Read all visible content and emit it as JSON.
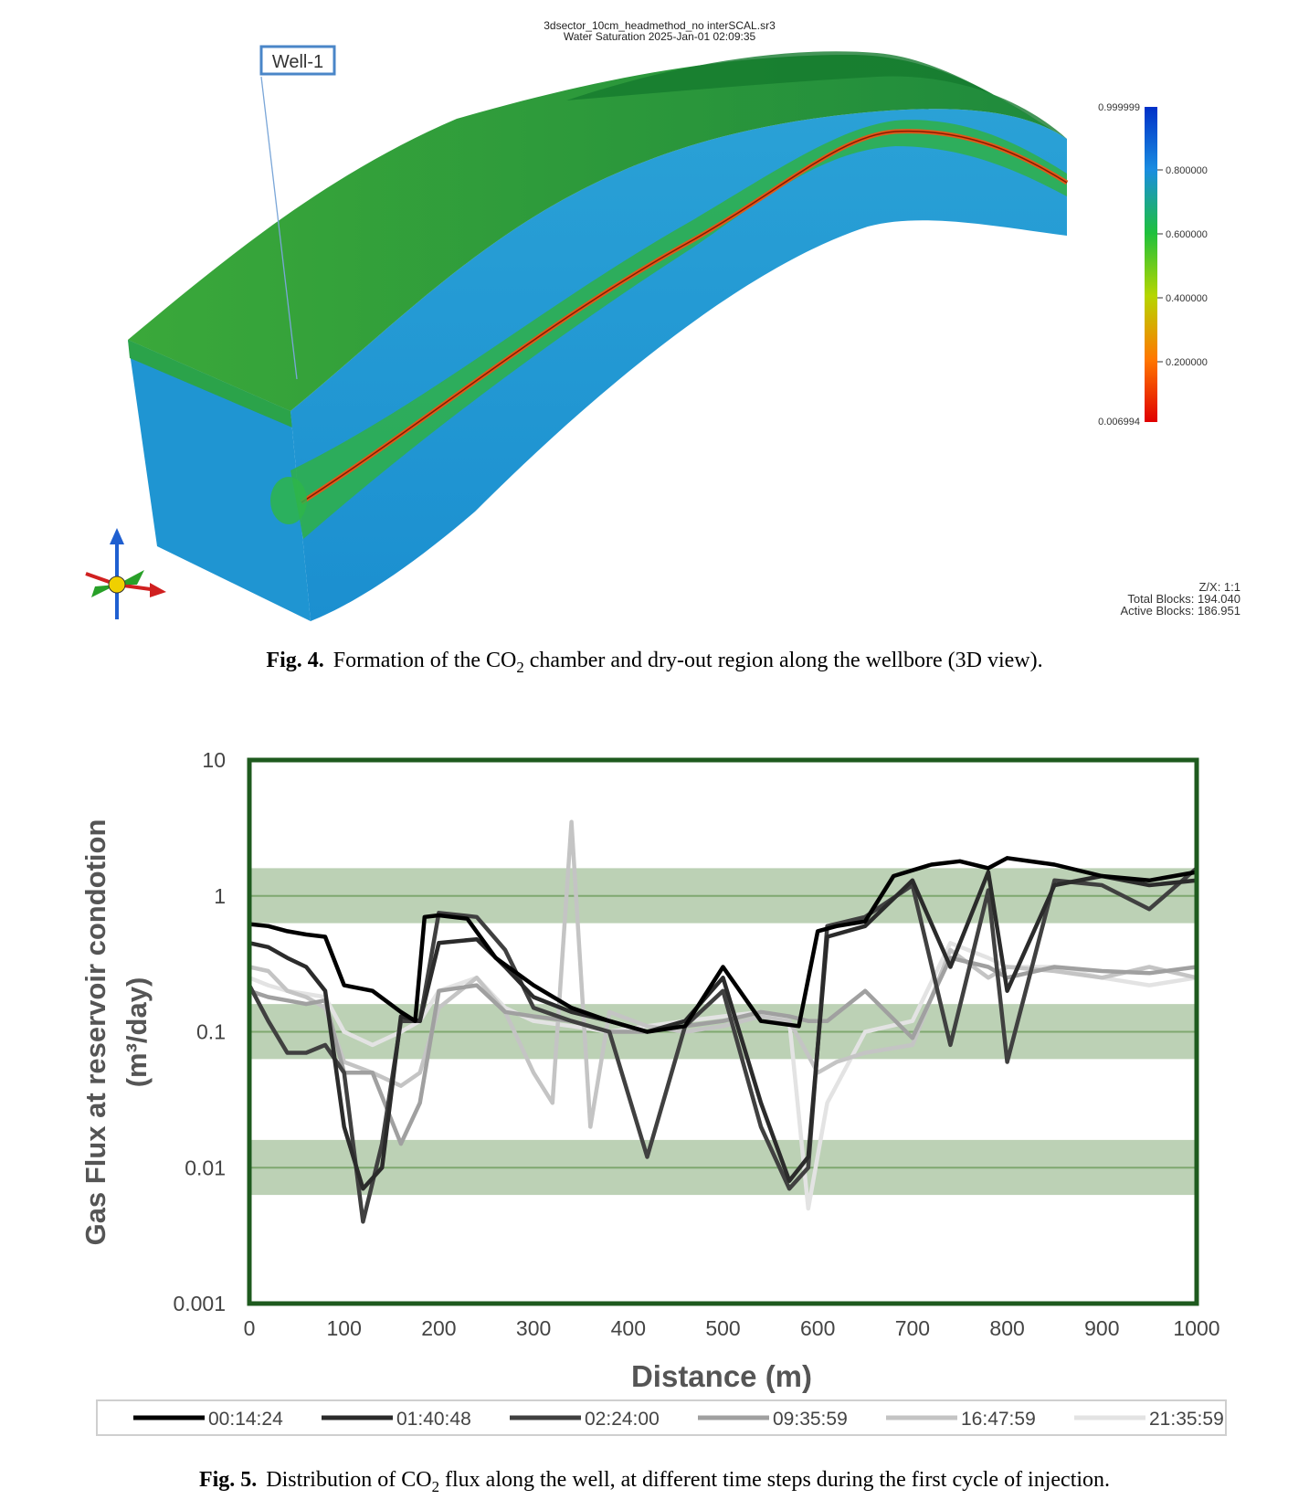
{
  "fig4": {
    "title_line1": "3dsector_10cm_headmethod_no interSCAL.sr3",
    "title_line2": "Water Saturation  2025-Jan-01 02:09:35",
    "well_label": "Well-1",
    "colorbar": {
      "top_value": "0.999999",
      "bottom_value": "0.006994",
      "ticks": [
        "0.800000",
        "0.600000",
        "0.400000",
        "0.200000"
      ],
      "colors": [
        "#0033cc",
        "#1f8fdc",
        "#1fc03a",
        "#a8d400",
        "#f0c800",
        "#ff6a00",
        "#e00000"
      ]
    },
    "info": {
      "zx": "Z/X: 1:1",
      "total_blocks": "Total Blocks: 194.040",
      "active_blocks": "Active Blocks: 186.951"
    },
    "caption_label": "Fig. 4.",
    "caption_pre": "Formation of the CO",
    "caption_sub": "2",
    "caption_post": " chamber and dry-out region along the wellbore (3D view)."
  },
  "fig5": {
    "caption_label": "Fig. 5.",
    "caption_pre": "Distribution of CO",
    "caption_sub": "2",
    "caption_post": " flux along the well, at different time steps during the first cycle of injection."
  },
  "chart_data": {
    "type": "line",
    "title": "",
    "xlabel": "Distance (m)",
    "ylabel_line1": "Gas Flux at reservoir condotion",
    "ylabel_line2": "(m³/day)",
    "xlim": [
      0,
      1000
    ],
    "ylim_log": [
      0.001,
      10
    ],
    "x_ticks": [
      "0",
      "100",
      "200",
      "300",
      "400",
      "500",
      "600",
      "700",
      "800",
      "900",
      "1000"
    ],
    "y_ticks": [
      "10",
      "1",
      "0.1",
      "0.01",
      "0.001"
    ],
    "bands": [
      {
        "center": 1,
        "low": 0.63,
        "high": 1.6
      },
      {
        "center": 0.1,
        "low": 0.063,
        "high": 0.16
      },
      {
        "center": 0.01,
        "low": 0.0063,
        "high": 0.016
      }
    ],
    "series": [
      {
        "name": "00:14:24",
        "color": "#000000",
        "x": [
          0,
          20,
          40,
          60,
          80,
          100,
          130,
          160,
          175,
          185,
          200,
          230,
          260,
          300,
          340,
          380,
          420,
          460,
          500,
          540,
          580,
          600,
          620,
          650,
          680,
          720,
          750,
          780,
          800,
          850,
          900,
          950,
          1000
        ],
        "y": [
          0.62,
          0.6,
          0.55,
          0.52,
          0.5,
          0.22,
          0.2,
          0.14,
          0.12,
          0.7,
          0.72,
          0.68,
          0.35,
          0.22,
          0.15,
          0.12,
          0.1,
          0.11,
          0.3,
          0.12,
          0.11,
          0.55,
          0.6,
          0.65,
          1.4,
          1.7,
          1.8,
          1.6,
          1.9,
          1.7,
          1.4,
          1.3,
          1.5
        ]
      },
      {
        "name": "01:40:48",
        "color": "#2b2b2b",
        "x": [
          0,
          20,
          40,
          60,
          80,
          100,
          120,
          140,
          160,
          180,
          200,
          240,
          270,
          300,
          340,
          380,
          420,
          460,
          500,
          540,
          570,
          590,
          610,
          650,
          700,
          740,
          780,
          800,
          850,
          900,
          950,
          1000
        ],
        "y": [
          0.45,
          0.42,
          0.35,
          0.3,
          0.2,
          0.02,
          0.007,
          0.01,
          0.13,
          0.12,
          0.45,
          0.48,
          0.3,
          0.18,
          0.14,
          0.12,
          0.1,
          0.12,
          0.25,
          0.03,
          0.008,
          0.012,
          0.5,
          0.6,
          1.3,
          0.3,
          1.5,
          0.2,
          1.2,
          1.4,
          1.2,
          1.3
        ]
      },
      {
        "name": "02:24:00",
        "color": "#404040",
        "x": [
          0,
          20,
          40,
          60,
          80,
          100,
          120,
          140,
          160,
          180,
          200,
          240,
          270,
          300,
          340,
          380,
          420,
          460,
          500,
          540,
          570,
          590,
          610,
          650,
          700,
          740,
          780,
          800,
          850,
          900,
          950,
          1000
        ],
        "y": [
          0.22,
          0.12,
          0.07,
          0.07,
          0.08,
          0.05,
          0.004,
          0.015,
          0.12,
          0.12,
          0.75,
          0.7,
          0.4,
          0.15,
          0.12,
          0.1,
          0.012,
          0.11,
          0.2,
          0.02,
          0.007,
          0.01,
          0.6,
          0.7,
          1.2,
          0.08,
          1.1,
          0.06,
          1.3,
          1.2,
          0.8,
          1.6
        ]
      },
      {
        "name": "09:35:59",
        "color": "#a0a0a0",
        "x": [
          0,
          20,
          40,
          60,
          80,
          100,
          130,
          160,
          180,
          200,
          240,
          270,
          300,
          340,
          380,
          420,
          460,
          500,
          540,
          570,
          590,
          610,
          650,
          700,
          740,
          780,
          800,
          850,
          900,
          950,
          1000
        ],
        "y": [
          0.2,
          0.18,
          0.17,
          0.16,
          0.17,
          0.05,
          0.05,
          0.015,
          0.03,
          0.2,
          0.22,
          0.14,
          0.13,
          0.12,
          0.1,
          0.1,
          0.11,
          0.12,
          0.14,
          0.13,
          0.12,
          0.12,
          0.2,
          0.09,
          0.35,
          0.3,
          0.25,
          0.3,
          0.28,
          0.27,
          0.3
        ]
      },
      {
        "name": "16:47:59",
        "color": "#c4c4c4",
        "x": [
          0,
          20,
          40,
          60,
          80,
          100,
          130,
          160,
          180,
          200,
          240,
          270,
          300,
          320,
          340,
          360,
          380,
          420,
          460,
          500,
          540,
          570,
          600,
          620,
          650,
          700,
          740,
          780,
          800,
          850,
          900,
          950,
          1000
        ],
        "y": [
          0.3,
          0.28,
          0.2,
          0.18,
          0.15,
          0.06,
          0.05,
          0.04,
          0.05,
          0.15,
          0.25,
          0.14,
          0.05,
          0.03,
          3.5,
          0.02,
          0.14,
          0.11,
          0.1,
          0.11,
          0.13,
          0.12,
          0.05,
          0.06,
          0.07,
          0.08,
          0.4,
          0.25,
          0.3,
          0.28,
          0.25,
          0.3,
          0.25
        ]
      },
      {
        "name": "21:35:59",
        "color": "#e3e3e3",
        "x": [
          0,
          20,
          40,
          60,
          80,
          100,
          130,
          160,
          180,
          200,
          240,
          270,
          300,
          340,
          380,
          420,
          460,
          500,
          540,
          570,
          590,
          610,
          650,
          700,
          740,
          780,
          800,
          850,
          900,
          950,
          1000
        ],
        "y": [
          0.25,
          0.22,
          0.2,
          0.19,
          0.18,
          0.1,
          0.08,
          0.1,
          0.12,
          0.2,
          0.25,
          0.15,
          0.12,
          0.11,
          0.1,
          0.11,
          0.12,
          0.13,
          0.14,
          0.12,
          0.005,
          0.03,
          0.1,
          0.12,
          0.45,
          0.35,
          0.3,
          0.3,
          0.25,
          0.22,
          0.25
        ]
      }
    ]
  }
}
